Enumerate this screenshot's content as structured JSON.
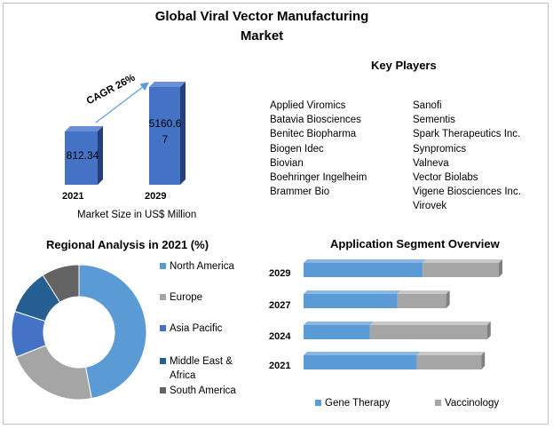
{
  "title_line1": "Global Viral Vector Manufacturing",
  "title_line2": "Market",
  "market_size": {
    "cagr_label": "CAGR 26%",
    "caption": "Market Size in US$ Million",
    "bars": [
      {
        "year": "2021",
        "value": 812.34,
        "label": "812.34"
      },
      {
        "year": "2029",
        "value": 5160.67,
        "label_line1": "5160.6",
        "label_line2": "7"
      }
    ]
  },
  "key_players": {
    "title": "Key Players",
    "col1": [
      "Applied Viromics",
      "Batavia Biosciences",
      "Benitec Biopharma",
      "Biogen Idec",
      "Biovian",
      "Boehringer Ingelheim",
      "Brammer Bio"
    ],
    "col2": [
      "Sanofi",
      "Sementis",
      "Spark Therapeutics Inc.",
      "Synpromics",
      "Valneva",
      "Vector Biolabs",
      "Vigene Biosciences Inc.",
      "Virovek"
    ]
  },
  "regional": {
    "title": "Regional Analysis in 2021 (%)",
    "legend": [
      {
        "name": "North America",
        "line1": "North America",
        "line2": "",
        "color": "#5b9bd5"
      },
      {
        "name": "Europe",
        "line1": "Europe",
        "line2": "",
        "color": "#a5a5a5"
      },
      {
        "name": "Asia Pacific",
        "line1": "Asia Pacific",
        "line2": "",
        "color": "#4472c4"
      },
      {
        "name": "Middle East & Africa",
        "line1": "Middle East &",
        "line2": "Africa",
        "color": "#255e91"
      },
      {
        "name": "South America",
        "line1": "South America",
        "line2": "",
        "color": "#636363"
      }
    ]
  },
  "application": {
    "title": "Application Segment Overview",
    "years": [
      "2029",
      "2027",
      "2024",
      "2021"
    ],
    "legend": [
      {
        "name": "Gene Therapy",
        "color": "#5b9bd5"
      },
      {
        "name": "Vaccinology",
        "color": "#a5a5a5"
      }
    ]
  },
  "chart_data": [
    {
      "type": "bar",
      "title": "",
      "categories": [
        "2021",
        "2029"
      ],
      "values": [
        812.34,
        5160.67
      ],
      "xlabel": "Market Size in US$ Million",
      "ylabel": "",
      "annotations": [
        "CAGR 26%"
      ]
    },
    {
      "type": "pie",
      "title": "Regional Analysis in 2021 (%)",
      "donut": true,
      "labels": [
        "North America",
        "Europe",
        "Asia Pacific",
        "Middle East & Africa",
        "South America"
      ],
      "values": [
        47,
        22,
        11,
        11,
        9
      ],
      "colors": [
        "#5b9bd5",
        "#a5a5a5",
        "#4472c4",
        "#255e91",
        "#636363"
      ],
      "legend": "right"
    },
    {
      "type": "bar",
      "orientation": "horizontal",
      "stacked": true,
      "title": "Application Segment Overview",
      "categories": [
        "2029",
        "2027",
        "2024",
        "2021"
      ],
      "series": [
        {
          "name": "Gene Therapy",
          "values": [
            61,
            48,
            34,
            58
          ]
        },
        {
          "name": "Vaccinology",
          "values": [
            39,
            25,
            60,
            33
          ]
        }
      ],
      "legend": "bottom"
    }
  ]
}
